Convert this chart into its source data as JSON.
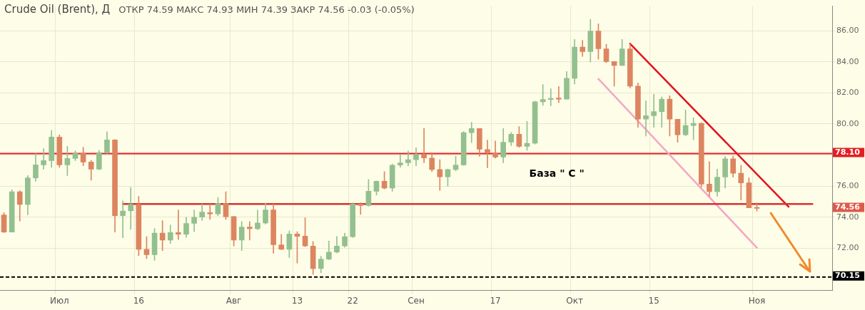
{
  "chart_data": {
    "type": "candlestick",
    "title": "Crude Oil (Brent), Д",
    "subtitle": "ОТКР 74.59   МАКС 74.93   МИН 74.39   ЗАКР 74.56   -0.03 (-0.05%)",
    "categories": [
      null,
      null,
      null,
      null,
      null,
      null,
      null,
      "Июл",
      null,
      null,
      null,
      null,
      null,
      null,
      null,
      null,
      null,
      "16",
      null,
      null,
      null,
      null,
      null,
      null,
      null,
      null,
      null,
      null,
      null,
      "Авг",
      null,
      null,
      null,
      null,
      null,
      null,
      null,
      "13",
      null,
      null,
      null,
      null,
      null,
      null,
      "22",
      null,
      null,
      null,
      null,
      null,
      null,
      null,
      "Сен",
      null,
      null,
      null,
      null,
      null,
      null,
      null,
      null,
      null,
      "17",
      null,
      null,
      null,
      null,
      null,
      null,
      null,
      null,
      null,
      "Окт",
      null,
      null,
      null,
      null,
      null,
      null,
      null,
      null,
      null,
      "15",
      null,
      null,
      null,
      null,
      null,
      null,
      null,
      null,
      null,
      null,
      null,
      null,
      "Ноя",
      null,
      null,
      null,
      null,
      null,
      null,
      null,
      null,
      null
    ],
    "ohlc": [
      [
        74.15,
        74.3,
        73.0,
        73.04
      ],
      [
        73.04,
        75.76,
        73.04,
        75.64
      ],
      [
        75.64,
        75.7,
        73.75,
        74.82
      ],
      [
        74.82,
        76.68,
        74.15,
        76.53
      ],
      [
        76.53,
        78.09,
        76.31,
        77.37
      ],
      [
        77.37,
        78.41,
        77.09,
        77.64
      ],
      [
        77.64,
        79.58,
        77.2,
        79.16
      ],
      [
        79.16,
        79.3,
        77.2,
        77.37
      ],
      [
        77.37,
        78.56,
        76.68,
        77.78
      ],
      [
        77.78,
        78.27,
        77.64,
        78.12
      ],
      [
        78.12,
        78.5,
        77.31,
        77.55
      ],
      [
        77.55,
        77.67,
        76.38,
        77.09
      ],
      [
        77.09,
        78.3,
        77.05,
        78.16
      ],
      [
        78.16,
        79.5,
        78.1,
        78.98
      ],
      [
        78.98,
        79.0,
        73.04,
        74.1
      ],
      [
        74.1,
        75.04,
        72.67,
        74.4
      ],
      [
        74.4,
        75.91,
        73.21,
        74.82
      ],
      [
        74.82,
        75.34,
        71.52,
        71.93
      ],
      [
        71.93,
        72.74,
        71.33,
        71.58
      ],
      [
        71.58,
        73.27,
        71.21,
        72.97
      ],
      [
        72.97,
        73.78,
        71.85,
        72.52
      ],
      [
        72.52,
        73.49,
        72.3,
        73.01
      ],
      [
        73.01,
        74.47,
        72.56,
        72.9
      ],
      [
        72.9,
        74.0,
        72.7,
        73.6
      ],
      [
        73.6,
        74.47,
        73.07,
        74.0
      ],
      [
        74.0,
        74.85,
        73.78,
        74.33
      ],
      [
        74.29,
        74.85,
        73.85,
        74.21
      ],
      [
        74.21,
        75.27,
        74.1,
        74.88
      ],
      [
        74.88,
        75.64,
        73.85,
        74.03
      ],
      [
        74.04,
        74.05,
        72.14,
        72.52
      ],
      [
        72.52,
        73.72,
        71.85,
        73.36
      ],
      [
        73.36,
        73.72,
        72.52,
        73.26
      ],
      [
        73.26,
        74.45,
        73.19,
        73.63
      ],
      [
        73.63,
        74.9,
        73.56,
        74.47
      ],
      [
        74.47,
        74.85,
        71.67,
        72.22
      ],
      [
        72.22,
        72.89,
        71.9,
        71.93
      ],
      [
        71.93,
        73.11,
        71.4,
        72.92
      ],
      [
        72.92,
        73.07,
        71.04,
        72.77
      ],
      [
        72.78,
        73.96,
        72.1,
        72.14
      ],
      [
        72.14,
        72.44,
        70.32,
        70.69
      ],
      [
        70.69,
        71.48,
        70.41,
        71.3
      ],
      [
        71.3,
        72.47,
        71.26,
        71.75
      ],
      [
        71.75,
        72.77,
        71.7,
        72.14
      ],
      [
        72.14,
        72.97,
        72.07,
        72.74
      ],
      [
        72.74,
        74.92,
        72.7,
        74.85
      ],
      [
        74.85,
        74.94,
        74.18,
        74.75
      ],
      [
        74.75,
        76.43,
        74.7,
        75.67
      ],
      [
        75.67,
        76.34,
        75.41,
        76.31
      ],
      [
        76.31,
        76.93,
        75.82,
        75.87
      ],
      [
        75.87,
        77.43,
        75.67,
        77.35
      ],
      [
        77.35,
        78.01,
        77.2,
        77.5
      ],
      [
        77.5,
        78.25,
        77.31,
        77.7
      ],
      [
        77.7,
        78.47,
        77.31,
        78.03
      ],
      [
        78.03,
        79.72,
        77.5,
        77.81
      ],
      [
        77.81,
        78.16,
        76.94,
        77.07
      ],
      [
        77.07,
        77.7,
        75.72,
        76.6
      ],
      [
        76.6,
        77.1,
        76.0,
        77.07
      ],
      [
        77.07,
        77.92,
        76.99,
        77.36
      ],
      [
        77.36,
        79.51,
        77.33,
        79.44
      ],
      [
        79.44,
        80.11,
        78.8,
        79.71
      ],
      [
        79.71,
        79.71,
        77.92,
        78.37
      ],
      [
        78.36,
        78.96,
        77.18,
        78.15
      ],
      [
        78.15,
        78.91,
        77.8,
        77.87
      ],
      [
        77.87,
        79.71,
        77.5,
        78.83
      ],
      [
        78.83,
        79.46,
        78.6,
        79.34
      ],
      [
        79.34,
        79.84,
        78.5,
        78.56
      ],
      [
        78.56,
        80.17,
        78.3,
        78.76
      ],
      [
        78.76,
        81.48,
        78.71,
        81.43
      ],
      [
        81.43,
        82.54,
        81.2,
        81.58
      ],
      [
        81.58,
        82.27,
        81.17,
        81.65
      ],
      [
        81.65,
        82.42,
        81.38,
        81.6
      ],
      [
        81.6,
        83.38,
        81.6,
        82.94
      ],
      [
        82.94,
        85.44,
        82.57,
        84.95
      ],
      [
        84.95,
        85.39,
        84.35,
        84.66
      ],
      [
        84.66,
        86.74,
        83.98,
        85.98
      ],
      [
        85.98,
        86.45,
        84.17,
        84.84
      ],
      [
        84.84,
        85.14,
        83.95,
        84.02
      ],
      [
        84.02,
        84.02,
        82.44,
        83.77
      ],
      [
        83.77,
        85.44,
        83.77,
        84.84
      ],
      [
        84.84,
        85.14,
        82.32,
        82.44
      ],
      [
        82.44,
        82.65,
        79.79,
        80.31
      ],
      [
        80.31,
        81.5,
        79.22,
        80.53
      ],
      [
        80.53,
        81.91,
        79.78,
        80.8
      ],
      [
        80.8,
        81.75,
        79.78,
        81.6
      ],
      [
        81.6,
        81.82,
        79.22,
        80.31
      ],
      [
        80.31,
        80.31,
        78.82,
        79.3
      ],
      [
        79.3,
        80.9,
        79.25,
        79.9
      ],
      [
        79.9,
        80.4,
        78.99,
        80.04
      ],
      [
        80.04,
        80.09,
        75.94,
        76.13
      ],
      [
        76.13,
        77.57,
        75.34,
        75.64
      ],
      [
        75.64,
        77.09,
        75.34,
        76.58
      ],
      [
        76.58,
        77.91,
        75.87,
        77.76
      ],
      [
        77.76,
        77.94,
        76.58,
        76.83
      ],
      [
        76.83,
        77.35,
        75.11,
        76.21
      ],
      [
        76.21,
        76.53,
        74.6,
        74.6
      ],
      [
        74.59,
        74.93,
        74.39,
        74.56
      ],
      null,
      null,
      null,
      null,
      null,
      null,
      null,
      null,
      null
    ],
    "colors": [
      "#dc8560",
      "#93c08e",
      "#dc8560",
      "#93c08e",
      "#93c08e",
      "#93c08e",
      "#93c08e",
      "#dc8560",
      "#93c08e",
      "#93c08e",
      "#dc8560",
      "#dc8560",
      "#93c08e",
      "#93c08e",
      "#dc8560",
      "#93c08e",
      "#93c08e",
      "#dc8560",
      "#dc8560",
      "#93c08e",
      "#dc8560",
      "#93c08e",
      "#dc8560",
      "#93c08e",
      "#93c08e",
      "#93c08e",
      "#dc8560",
      "#93c08e",
      "#dc8560",
      "#dc8560",
      "#93c08e",
      "#dc8560",
      "#93c08e",
      "#93c08e",
      "#dc8560",
      "#dc8560",
      "#93c08e",
      "#dc8560",
      "#dc8560",
      "#dc8560",
      "#93c08e",
      "#93c08e",
      "#93c08e",
      "#93c08e",
      "#93c08e",
      "#dc8560",
      "#93c08e",
      "#93c08e",
      "#dc8560",
      "#93c08e",
      "#93c08e",
      "#93c08e",
      "#93c08e",
      "#dc8560",
      "#dc8560",
      "#dc8560",
      "#93c08e",
      "#93c08e",
      "#93c08e",
      "#93c08e",
      "#dc8560",
      "#dc8560",
      "#dc8560",
      "#93c08e",
      "#93c08e",
      "#dc8560",
      "#93c08e",
      "#93c08e",
      "#93c08e",
      "#93c08e",
      "#dc8560",
      "#93c08e",
      "#93c08e",
      "#dc8560",
      "#93c08e",
      "#dc8560",
      "#dc8560",
      "#dc8560",
      "#93c08e",
      "#dc8560",
      "#dc8560",
      "#93c08e",
      "#93c08e",
      "#93c08e",
      "#dc8560",
      "#dc8560",
      "#93c08e",
      "#93c08e",
      "#dc8560",
      "#dc8560",
      "#93c08e",
      "#93c08e",
      "#dc8560",
      "#dc8560",
      "#dc8560",
      "#dc8560",
      null,
      null,
      null,
      null,
      null,
      null,
      null,
      null,
      null
    ],
    "series": [
      {
        "type": "line",
        "color": "#d93030",
        "values": [
          null,
          null,
          null,
          null,
          null,
          null,
          null,
          null,
          null,
          null,
          null,
          null,
          null,
          null,
          null,
          74.85,
          null,
          null,
          null,
          null,
          null,
          null,
          null,
          null,
          null,
          null,
          null,
          null,
          null,
          null,
          null,
          null,
          null,
          null,
          null,
          null,
          null,
          null,
          null,
          null,
          null,
          null,
          null,
          null,
          null,
          null,
          null,
          null,
          null,
          null,
          null,
          null,
          null,
          null,
          null,
          null,
          null,
          null,
          null,
          null,
          null,
          null,
          null,
          null,
          null,
          null,
          null,
          null,
          null,
          null,
          null,
          null,
          null,
          null,
          null,
          null,
          null,
          null,
          null,
          null,
          null,
          null,
          null,
          null,
          null,
          null,
          null,
          null,
          null,
          null,
          null,
          null,
          null,
          null,
          null,
          null,
          null,
          null,
          null,
          null,
          null,
          null,
          74.85,
          null,
          null
        ]
      },
      {
        "type": "line",
        "color": "#e0141e",
        "values": [
          null,
          null,
          null,
          null,
          null,
          null,
          null,
          null,
          null,
          null,
          null,
          null,
          null,
          null,
          null,
          null,
          null,
          null,
          null,
          null,
          null,
          null,
          null,
          null,
          null,
          null,
          null,
          null,
          null,
          null,
          null,
          null,
          null,
          null,
          null,
          null,
          null,
          null,
          null,
          null,
          null,
          null,
          null,
          null,
          null,
          null,
          null,
          null,
          null,
          null,
          null,
          null,
          null,
          null,
          null,
          null,
          null,
          null,
          null,
          null,
          null,
          null,
          null,
          null,
          null,
          null,
          null,
          null,
          null,
          null,
          null,
          null,
          null,
          null,
          null,
          null,
          null,
          null,
          null,
          85.17,
          null,
          null,
          null,
          null,
          null,
          null,
          null,
          null,
          null,
          null,
          null,
          null,
          null,
          null,
          null,
          null,
          null,
          null,
          null,
          74.67,
          null,
          null,
          null,
          null,
          null
        ]
      },
      {
        "type": "line",
        "color": "#f4a6c4",
        "values": [
          null,
          null,
          null,
          null,
          null,
          null,
          null,
          null,
          null,
          null,
          null,
          null,
          null,
          null,
          null,
          null,
          null,
          null,
          null,
          null,
          null,
          null,
          null,
          null,
          null,
          null,
          null,
          null,
          null,
          null,
          null,
          null,
          null,
          null,
          null,
          null,
          null,
          null,
          null,
          null,
          null,
          null,
          null,
          null,
          null,
          null,
          null,
          null,
          null,
          null,
          null,
          null,
          null,
          null,
          null,
          null,
          null,
          null,
          null,
          null,
          null,
          null,
          null,
          null,
          null,
          null,
          null,
          null,
          null,
          null,
          null,
          null,
          null,
          null,
          null,
          82.91,
          null,
          null,
          null,
          null,
          null,
          null,
          null,
          null,
          null,
          null,
          null,
          null,
          null,
          null,
          null,
          null,
          null,
          null,
          null,
          72.03,
          null,
          null,
          null,
          null,
          null,
          null,
          null,
          null,
          null
        ]
      }
    ],
    "ylim": [
      69.28,
      87.59
    ],
    "yticks": [
      {
        "value": 72,
        "label": "72.00"
      },
      {
        "value": 74,
        "label": "74.00"
      },
      {
        "value": 76,
        "label": "76.00"
      },
      {
        "value": 78,
        "label": null
      },
      {
        "value": 80,
        "label": "80.00"
      },
      {
        "value": 82,
        "label": "82.00"
      },
      {
        "value": 84,
        "label": "84.00"
      },
      {
        "value": 86,
        "label": "86.00"
      }
    ],
    "grid": true,
    "ref_lines": [
      {
        "axis": "y",
        "value": 78.1,
        "label": "78.10",
        "color": "#e31e24"
      },
      {
        "axis": "y",
        "value": 70.15,
        "label": "70.15",
        "color": "#000000",
        "line_style": "dashed"
      }
    ],
    "annotations": [
      "База \" C \"",
      "74.56"
    ]
  }
}
